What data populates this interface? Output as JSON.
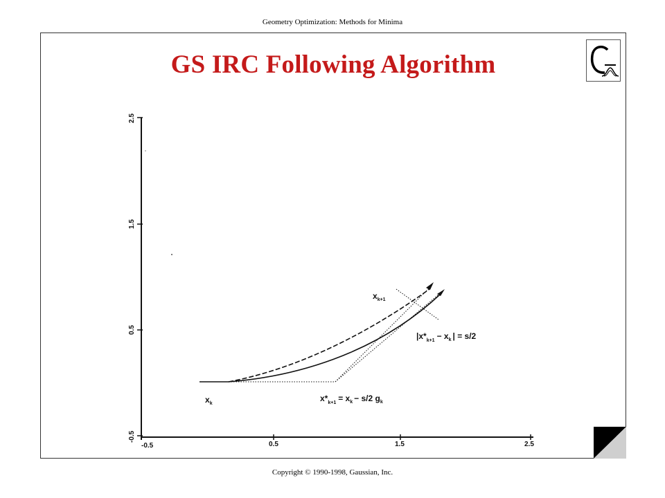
{
  "header": {
    "text": "Geometry Optimization: Methods for Minima"
  },
  "slide": {
    "title": "GS IRC Following Algorithm"
  },
  "footer": {
    "text": "Copyright © 1990-1998, Gaussian, Inc."
  },
  "logo": {
    "icon": "gaussian-logo-icon"
  },
  "colors": {
    "title": "#c41a1a",
    "ink": "#111111"
  },
  "diagram": {
    "x_ticks": [
      "-0.5",
      "0.5",
      "1.5",
      "2.5"
    ],
    "y_ticks": [
      "-0.5",
      "0.5",
      "1.5",
      "2.5"
    ],
    "labels": {
      "xk_main": "x",
      "xk_sub": "k",
      "xk1_main": "x",
      "xk1_sub": "k+1",
      "constraint": "|x*",
      "constraint_sub": "k+1",
      "constraint_rest": "− x",
      "constraint_sub2": "k",
      "constraint_end": "| = s/2",
      "step": "x*",
      "step_sub": "k+1",
      "step_rest": "= x",
      "step_sub2": "k",
      "step_end": "− s/2 g",
      "step_sub3": "k"
    }
  }
}
